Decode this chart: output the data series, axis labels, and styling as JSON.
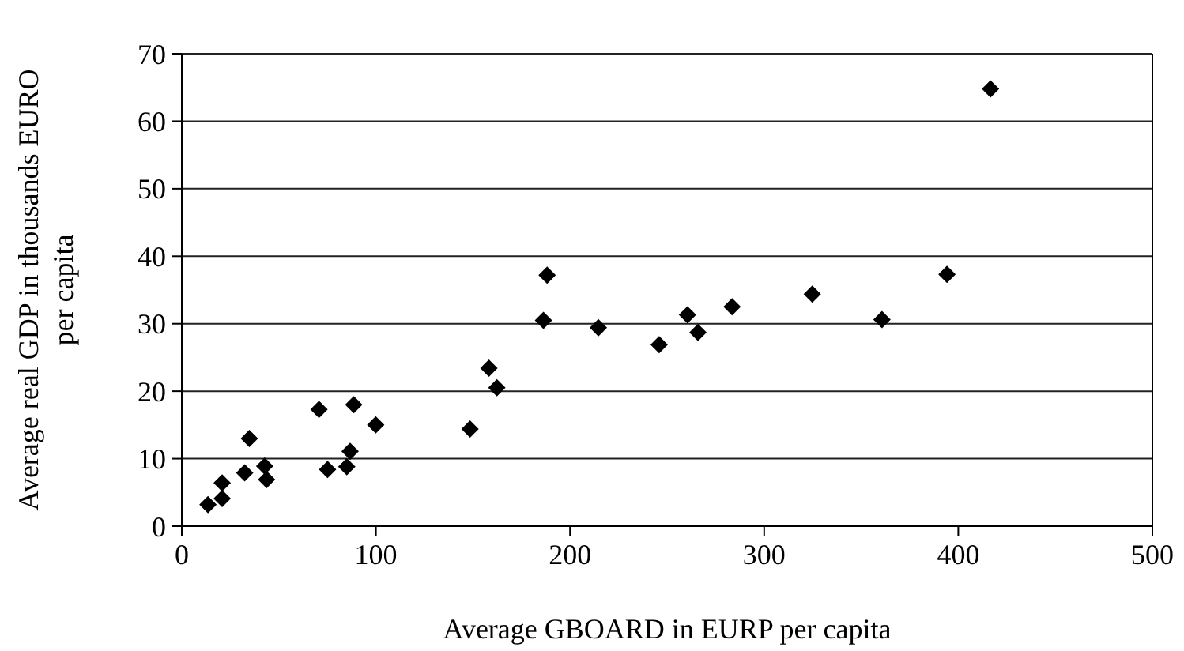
{
  "chart_data": {
    "type": "scatter",
    "xlabel": "Average GBOARD in EURP per capita",
    "ylabel": "Average real GDP in thousands EURO per capita",
    "marker": "diamond",
    "grid": "y",
    "xlim": [
      0,
      500
    ],
    "xticks": [
      0,
      100,
      200,
      300,
      400,
      500
    ],
    "ylim": [
      0,
      70
    ],
    "yticks": [
      0,
      10,
      20,
      30,
      40,
      50,
      60,
      70
    ],
    "series": [
      {
        "color": "#000000",
        "x": [
          13.5,
          20.8,
          20.8,
          32.4,
          34.8,
          42.7,
          43.7,
          70.7,
          75.1,
          85,
          86.7,
          88.6,
          99.9,
          148.5,
          158.2,
          162.3,
          186.3,
          188.2,
          214.6,
          245.9,
          260.5,
          265.9,
          283.5,
          324.8,
          360.7,
          394.2,
          416.6
        ],
        "values": [
          3.2,
          6.4,
          4.1,
          7.9,
          13,
          8.9,
          6.9,
          17.3,
          8.4,
          8.8,
          11.1,
          18,
          15,
          14.4,
          23.4,
          20.5,
          30.5,
          37.2,
          29.4,
          26.9,
          31.3,
          28.7,
          32.5,
          34.4,
          30.6,
          37.3,
          64.8
        ]
      }
    ]
  }
}
